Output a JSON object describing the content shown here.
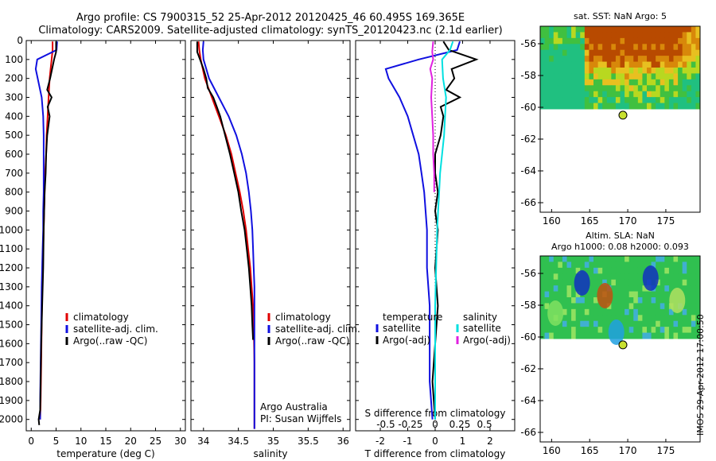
{
  "header": {
    "title_line1": "Argo profile: CS 7900315_52 25-Apr-2012 20120425_46 60.495S 169.365E",
    "title_line2": "Climatology: CARS2009. Satellite-adjusted climatology: synTS_20120423.nc (2.1d earlier)"
  },
  "footer_stamp": "IMOS 29-Apr-2012 17:00:50",
  "colors": {
    "climatology": "#e00000",
    "satellite": "#1010e0",
    "argo": "#000000",
    "sat_salinity": "#00e0e0",
    "argo_adj_salinity": "#e020e0"
  },
  "chart_data": [
    {
      "type": "line",
      "panel": "temperature",
      "xlabel": "temperature (deg C)",
      "ylabel": "",
      "xlim": [
        -1,
        31
      ],
      "ylim": [
        2060,
        0
      ],
      "xticks": [
        0,
        5,
        10,
        15,
        20,
        25,
        30
      ],
      "yticks": [
        0,
        100,
        200,
        300,
        400,
        500,
        600,
        700,
        800,
        900,
        1000,
        1100,
        1200,
        1300,
        1400,
        1500,
        1600,
        1700,
        1800,
        1900,
        2000
      ],
      "legend": [
        "climatology",
        "satellite-adj. clim.",
        "Argo(..raw -QC)"
      ],
      "legend_position": "lower-right",
      "series": [
        {
          "name": "climatology",
          "color_key": "climatology",
          "points": [
            [
              4.3,
              5
            ],
            [
              4.3,
              50
            ],
            [
              4.1,
              100
            ],
            [
              3.9,
              150
            ],
            [
              3.7,
              200
            ],
            [
              3.5,
              300
            ],
            [
              3.3,
              400
            ],
            [
              3.1,
              500
            ],
            [
              3.0,
              600
            ],
            [
              2.8,
              700
            ],
            [
              2.7,
              800
            ],
            [
              2.6,
              900
            ],
            [
              2.5,
              1000
            ],
            [
              2.4,
              1100
            ],
            [
              2.3,
              1200
            ],
            [
              2.2,
              1300
            ],
            [
              2.1,
              1500
            ],
            [
              2.0,
              1700
            ],
            [
              1.9,
              1900
            ],
            [
              1.8,
              2000
            ]
          ]
        },
        {
          "name": "satellite-adj. clim.",
          "color_key": "satellite",
          "points": [
            [
              5.2,
              5
            ],
            [
              5.1,
              50
            ],
            [
              1.2,
              100
            ],
            [
              0.9,
              150
            ],
            [
              1.3,
              200
            ],
            [
              2.1,
              300
            ],
            [
              2.4,
              400
            ],
            [
              2.5,
              500
            ],
            [
              2.5,
              600
            ],
            [
              2.5,
              700
            ],
            [
              2.5,
              800
            ],
            [
              2.4,
              900
            ],
            [
              2.4,
              1000
            ],
            [
              2.3,
              1100
            ],
            [
              2.2,
              1200
            ],
            [
              2.1,
              1300
            ],
            [
              2.0,
              1500
            ],
            [
              1.9,
              1700
            ],
            [
              1.8,
              1900
            ],
            [
              1.8,
              2000
            ]
          ]
        },
        {
          "name": "Argo(..raw -QC)",
          "color_key": "argo",
          "points": [
            [
              5.0,
              5
            ],
            [
              5.0,
              60
            ],
            [
              4.6,
              100
            ],
            [
              4.2,
              150
            ],
            [
              3.8,
              200
            ],
            [
              3.2,
              260
            ],
            [
              4.1,
              300
            ],
            [
              3.3,
              350
            ],
            [
              3.7,
              400
            ],
            [
              3.2,
              500
            ],
            [
              3.0,
              600
            ],
            [
              2.9,
              700
            ],
            [
              2.7,
              800
            ],
            [
              2.6,
              900
            ],
            [
              2.5,
              1000
            ],
            [
              2.4,
              1200
            ],
            [
              2.2,
              1400
            ],
            [
              2.0,
              1600
            ],
            [
              1.9,
              1800
            ],
            [
              1.8,
              1950
            ],
            [
              1.5,
              2000
            ],
            [
              1.6,
              2030
            ]
          ]
        }
      ]
    },
    {
      "type": "line",
      "panel": "salinity",
      "xlabel": "salinity",
      "ylabel": "",
      "xlim": [
        33.82,
        36.1
      ],
      "ylim": [
        2060,
        0
      ],
      "xticks": [
        34,
        34.5,
        35,
        35.5,
        36
      ],
      "legend": [
        "climatology",
        "satellite-adj. clim.",
        "Argo(..raw -QC)"
      ],
      "legend_position": "lower-right",
      "annotation": [
        "Argo Australia",
        "PI: Susan Wijffels"
      ],
      "series": [
        {
          "name": "climatology",
          "color_key": "climatology",
          "points": [
            [
              33.93,
              5
            ],
            [
              33.94,
              50
            ],
            [
              33.96,
              100
            ],
            [
              34.02,
              200
            ],
            [
              34.12,
              300
            ],
            [
              34.22,
              400
            ],
            [
              34.32,
              500
            ],
            [
              34.4,
              600
            ],
            [
              34.46,
              700
            ],
            [
              34.52,
              800
            ],
            [
              34.57,
              900
            ],
            [
              34.61,
              1000
            ],
            [
              34.64,
              1100
            ],
            [
              34.67,
              1200
            ],
            [
              34.69,
              1300
            ],
            [
              34.71,
              1400
            ],
            [
              34.72,
              1500
            ],
            [
              34.73,
              1700
            ],
            [
              34.73,
              1900
            ],
            [
              34.73,
              2050
            ]
          ]
        },
        {
          "name": "satellite-adj. clim.",
          "color_key": "satellite",
          "points": [
            [
              34.0,
              5
            ],
            [
              33.99,
              50
            ],
            [
              34.0,
              100
            ],
            [
              34.08,
              200
            ],
            [
              34.22,
              300
            ],
            [
              34.36,
              400
            ],
            [
              34.47,
              500
            ],
            [
              34.55,
              600
            ],
            [
              34.61,
              700
            ],
            [
              34.65,
              800
            ],
            [
              34.68,
              900
            ],
            [
              34.7,
              1000
            ],
            [
              34.71,
              1100
            ],
            [
              34.72,
              1200
            ],
            [
              34.73,
              1300
            ],
            [
              34.73,
              1500
            ],
            [
              34.73,
              1700
            ],
            [
              34.73,
              1900
            ],
            [
              34.73,
              2050
            ]
          ]
        },
        {
          "name": "Argo(..raw -QC)",
          "color_key": "argo",
          "points": [
            [
              33.91,
              5
            ],
            [
              33.91,
              60
            ],
            [
              33.95,
              100
            ],
            [
              34.0,
              150
            ],
            [
              34.04,
              200
            ],
            [
              34.06,
              250
            ],
            [
              34.14,
              300
            ],
            [
              34.19,
              350
            ],
            [
              34.24,
              400
            ],
            [
              34.31,
              500
            ],
            [
              34.38,
              600
            ],
            [
              34.44,
              700
            ],
            [
              34.5,
              800
            ],
            [
              34.54,
              900
            ],
            [
              34.59,
              1000
            ],
            [
              34.62,
              1100
            ],
            [
              34.65,
              1200
            ],
            [
              34.67,
              1300
            ],
            [
              34.69,
              1400
            ],
            [
              34.7,
              1500
            ],
            [
              34.71,
              1580
            ]
          ]
        }
      ]
    },
    {
      "type": "line",
      "panel": "difference",
      "xlabel": "T difference from climatology",
      "top_xlabel": "S difference from climatology",
      "xlim": [
        -2.9,
        2.9
      ],
      "ylim": [
        2060,
        0
      ],
      "xticks": [
        -2,
        -1,
        0,
        1,
        2
      ],
      "top_xticks": [
        "-0.5",
        "-0.25",
        "0",
        "0.25",
        "0.5"
      ],
      "legend_left_title": "temperature",
      "legend_right_title": "salinity",
      "legend": [
        "satellite",
        "Argo(-adj)",
        "satellite",
        "Argo(-adj)"
      ],
      "legend_position": "lower-center",
      "series": [
        {
          "name": "satellite",
          "group": "temperature",
          "color_key": "satellite",
          "points": [
            [
              0.9,
              5
            ],
            [
              0.8,
              50
            ],
            [
              -0.6,
              100
            ],
            [
              -1.8,
              150
            ],
            [
              -1.7,
              200
            ],
            [
              -1.3,
              300
            ],
            [
              -1.0,
              400
            ],
            [
              -0.8,
              500
            ],
            [
              -0.6,
              600
            ],
            [
              -0.5,
              700
            ],
            [
              -0.4,
              800
            ],
            [
              -0.3,
              1000
            ],
            [
              -0.3,
              1200
            ],
            [
              -0.2,
              1400
            ],
            [
              -0.2,
              1600
            ],
            [
              -0.2,
              1800
            ],
            [
              -0.1,
              2000
            ]
          ]
        },
        {
          "name": "Argo(-adj)",
          "group": "temperature",
          "color_key": "argo",
          "points": [
            [
              0.3,
              5
            ],
            [
              0.5,
              50
            ],
            [
              1.5,
              100
            ],
            [
              0.6,
              150
            ],
            [
              0.7,
              200
            ],
            [
              0.4,
              260
            ],
            [
              0.9,
              300
            ],
            [
              0.2,
              350
            ],
            [
              0.3,
              400
            ],
            [
              0.2,
              500
            ],
            [
              0.0,
              600
            ],
            [
              0.0,
              700
            ],
            [
              0.1,
              800
            ],
            [
              0.0,
              900
            ],
            [
              0.1,
              1000
            ],
            [
              0.0,
              1200
            ],
            [
              0.1,
              1400
            ],
            [
              0.0,
              1600
            ],
            [
              -0.1,
              1800
            ],
            [
              0.0,
              2000
            ]
          ]
        },
        {
          "name": "satellite",
          "group": "salinity",
          "color_key": "sat_salinity",
          "points": [
            [
              0.18,
              5
            ],
            [
              0.15,
              50
            ],
            [
              0.07,
              100
            ],
            [
              0.08,
              200
            ],
            [
              0.11,
              300
            ],
            [
              0.1,
              400
            ],
            [
              0.09,
              500
            ],
            [
              0.07,
              600
            ],
            [
              0.05,
              700
            ],
            [
              0.04,
              800
            ],
            [
              0.03,
              900
            ],
            [
              0.02,
              1000
            ],
            [
              0.01,
              1200
            ],
            [
              0.0,
              1400
            ],
            [
              0.0,
              1600
            ],
            [
              0.0,
              1800
            ],
            [
              0.0,
              2000
            ]
          ]
        },
        {
          "name": "Argo(-adj)",
          "group": "salinity",
          "color_key": "argo_adj_salinity",
          "points": [
            [
              -0.02,
              5
            ],
            [
              -0.03,
              60
            ],
            [
              -0.02,
              100
            ],
            [
              -0.05,
              150
            ],
            [
              -0.03,
              200
            ],
            [
              -0.04,
              300
            ],
            [
              -0.03,
              400
            ],
            [
              -0.02,
              500
            ],
            [
              -0.02,
              600
            ],
            [
              -0.01,
              700
            ],
            [
              -0.01,
              800
            ]
          ]
        }
      ]
    },
    {
      "type": "heatmap",
      "panel": "sst_map",
      "title": "sat. SST: NaN Argo: 5",
      "xticks": [
        160,
        165,
        170,
        175
      ],
      "yticks": [
        -56,
        -58,
        -60,
        -62,
        -64,
        -66
      ],
      "xlim": [
        158.5,
        179.5
      ],
      "ylim": [
        -66.6,
        -54.9
      ],
      "data_extent_lat": [
        -54.9,
        -60.1
      ],
      "argo_position": {
        "lon": 169.365,
        "lat": -60.495
      }
    },
    {
      "type": "heatmap",
      "panel": "sla_map",
      "title": "Altim. SLA: NaN",
      "subtitle": "Argo h1000: 0.08 h2000: 0.093",
      "xticks": [
        160,
        165,
        170,
        175
      ],
      "yticks": [
        -56,
        -58,
        -60,
        -62,
        -64,
        -66
      ],
      "xlim": [
        158.5,
        179.5
      ],
      "ylim": [
        -66.6,
        -54.9
      ],
      "data_extent_lat": [
        -54.9,
        -60.1
      ],
      "argo_position": {
        "lon": 169.365,
        "lat": -60.495
      }
    }
  ]
}
